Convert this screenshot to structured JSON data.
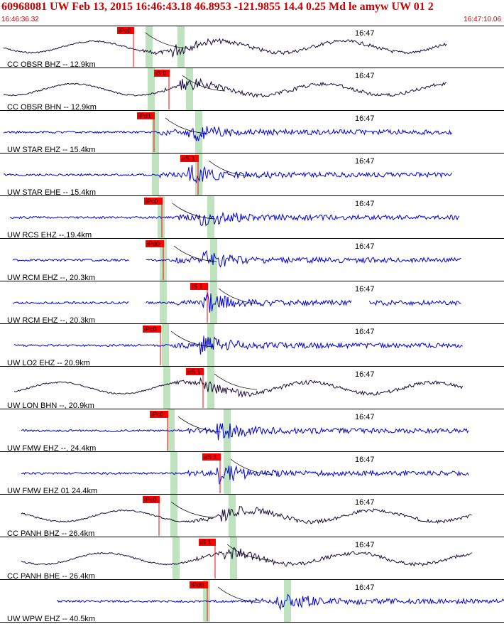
{
  "header": {
    "title": "60968081 UW Feb 13, 2015 16:46:43.18   46.8953 -121.9855 14.4 0.25 Md le amyw UW 01   2",
    "start_time": "16:46:36.32",
    "end_time": "16:47:10.06"
  },
  "colors": {
    "header_text": "#cc0000",
    "trace_broadband": "#1a0a3a",
    "trace_shortperiod": "#0000dd",
    "pick_box": "#ff0000",
    "pick_highlight": "#bfe3bf",
    "separator": "#000000",
    "theoretical_curve": "#000000"
  },
  "chart_data": {
    "type": "line",
    "x_range_label": [
      "16:46:36.32",
      "16:47:10.06"
    ],
    "time_mark": "16:47",
    "traces": [
      {
        "label": "CC OBSR BHZ -- 12.9km",
        "pick": "iPc0",
        "broadband": true
      },
      {
        "label": "CC OBSR BHN -- 12.9km",
        "pick": "iS 0",
        "broadband": true
      },
      {
        "label": "UW STAR EHZ -- 15.4km",
        "pick": "iPd1",
        "broadband": false
      },
      {
        "label": "UW STAR EHE -- 15.4km",
        "pick": "eS 1",
        "broadband": false
      },
      {
        "label": "UW RCS EHZ --,19.4km",
        "pick": "iPc0",
        "broadband": false
      },
      {
        "label": "UW RCM EHZ --, 20.3km",
        "pick": "iPd0",
        "broadband": false
      },
      {
        "label": "UW RCM EHZ --, 20.3km",
        "pick": "iS 1",
        "broadband": false
      },
      {
        "label": "UW LO2 EHZ -- 20.9km",
        "pick": "iPc0",
        "broadband": false
      },
      {
        "label": "UW LON BHN --, 20.9km",
        "pick": "eS 1",
        "broadband": true
      },
      {
        "label": "UW FMW EHZ --, 24.4km",
        "pick": "iPc0",
        "broadband": false
      },
      {
        "label": "UW FMW EHZ 01 24.4km",
        "pick": "eS 1",
        "broadband": false
      },
      {
        "label": "CC PANH BHZ -- 26.4km",
        "pick": "iPc0",
        "broadband": true
      },
      {
        "label": "CC PANH BHE -- 26.4km",
        "pick": "iS 1",
        "broadband": true
      },
      {
        "label": "UW WPW EHZ -- 40.5km",
        "pick": "iPd0",
        "broadband": false
      }
    ]
  }
}
